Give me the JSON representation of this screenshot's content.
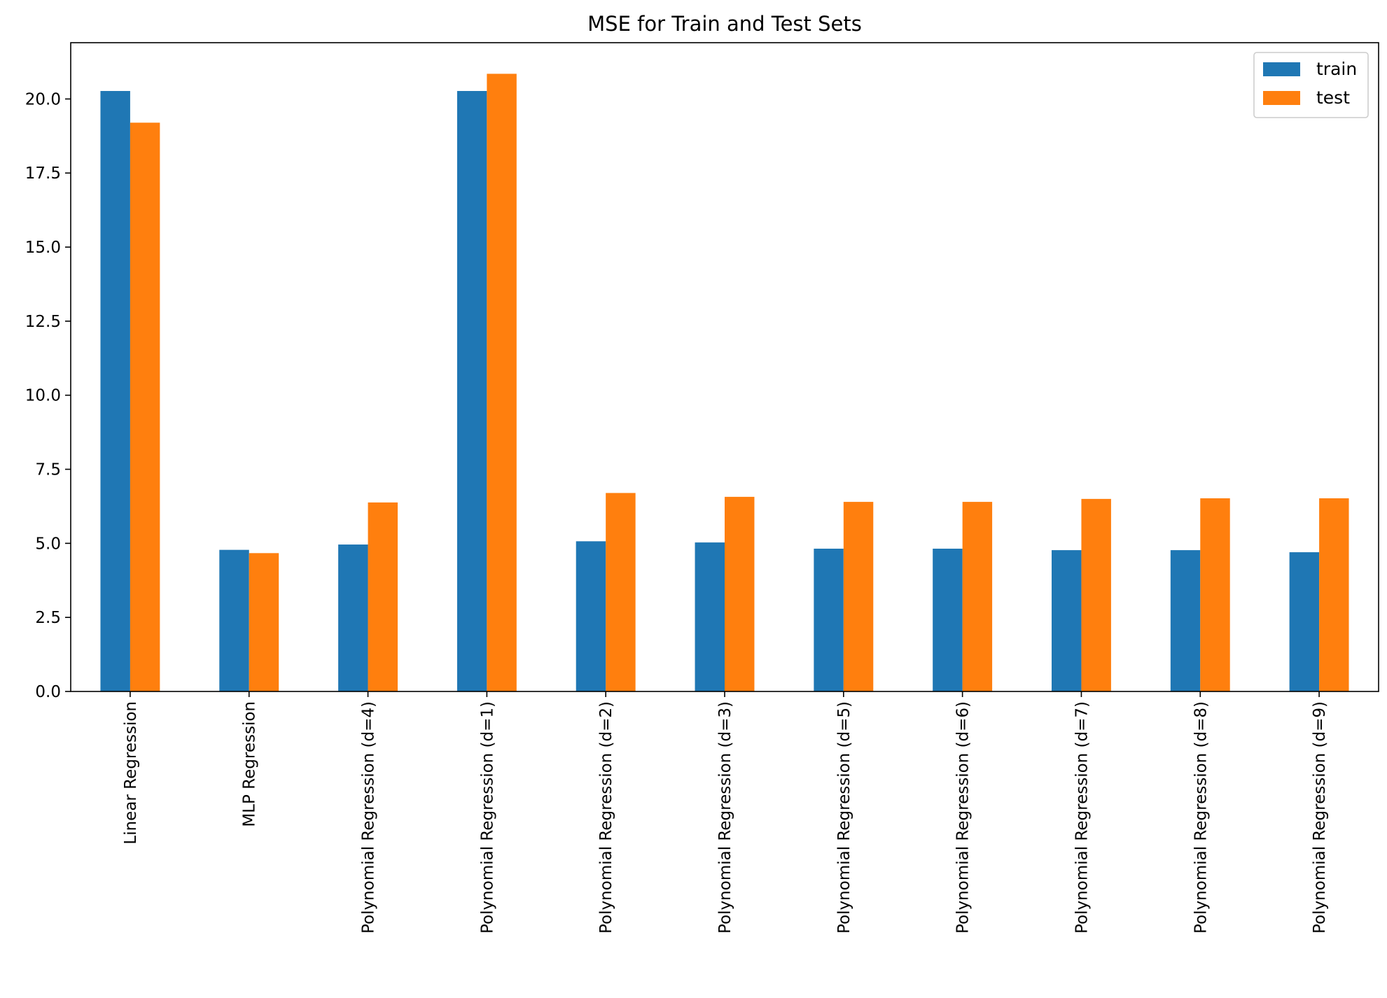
{
  "chart_data": {
    "type": "bar",
    "title": "MSE for Train and Test Sets",
    "xlabel": "",
    "ylabel": "",
    "categories": [
      "Linear Regression",
      "MLP Regression",
      "Polynomial Regression (d=4)",
      "Polynomial Regression (d=1)",
      "Polynomial Regression (d=2)",
      "Polynomial Regression (d=3)",
      "Polynomial Regression (d=5)",
      "Polynomial Regression (d=6)",
      "Polynomial Regression (d=7)",
      "Polynomial Regression (d=8)",
      "Polynomial Regression (d=9)"
    ],
    "series": [
      {
        "name": "train",
        "color": "#1f77b4",
        "values": [
          20.27,
          4.78,
          4.96,
          20.27,
          5.07,
          5.03,
          4.82,
          4.82,
          4.77,
          4.77,
          4.7
        ]
      },
      {
        "name": "test",
        "color": "#ff7f0e",
        "values": [
          19.2,
          4.67,
          6.38,
          20.85,
          6.7,
          6.57,
          6.4,
          6.4,
          6.5,
          6.52,
          6.52
        ]
      }
    ],
    "ylim": [
      0,
      21.9
    ],
    "yticks": [
      0.0,
      2.5,
      5.0,
      7.5,
      10.0,
      12.5,
      15.0,
      17.5,
      20.0
    ],
    "ytick_labels": [
      "0.0",
      "2.5",
      "5.0",
      "7.5",
      "10.0",
      "12.5",
      "15.0",
      "17.5",
      "20.0"
    ],
    "grid": false,
    "legend": "top-right"
  }
}
